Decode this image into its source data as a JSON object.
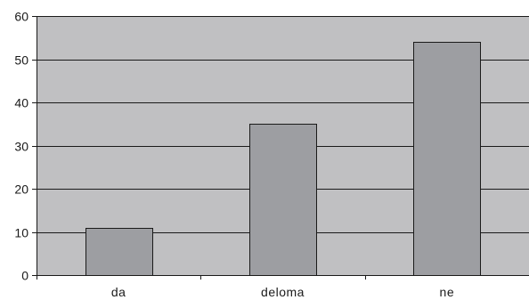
{
  "chart_data": {
    "type": "bar",
    "categories": [
      "da",
      "deloma",
      "ne"
    ],
    "values": [
      11,
      35,
      54
    ],
    "title": "",
    "xlabel": "",
    "ylabel": "",
    "ylim": [
      0,
      60
    ],
    "yticks": [
      0,
      10,
      20,
      30,
      40,
      50,
      60
    ],
    "grid": true,
    "legend": "none",
    "colors": {
      "plot_background": "#c0c0c2",
      "bar_fill": "#9d9ea2",
      "bar_stroke": "#1a1a1a",
      "grid": "#1a1a1a",
      "axis": "#1a1a1a"
    }
  }
}
